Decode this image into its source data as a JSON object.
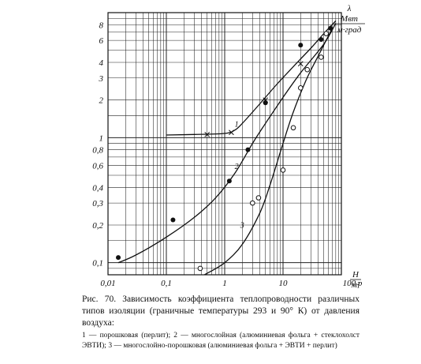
{
  "chart_data": {
    "type": "scatter",
    "x_scale": "log",
    "y_scale": "log",
    "xlim": [
      0.01,
      100
    ],
    "ylim": [
      0.08,
      10
    ],
    "grid": true,
    "y_unit_symbol": "λ",
    "y_unit_num": "Мвт",
    "y_unit_den": "м·град",
    "x_unit_num": "Н",
    "x_unit_den": "м²",
    "x_ticks": [
      {
        "v": 0.01,
        "label": "0,01"
      },
      {
        "v": 0.1,
        "label": "0,1"
      },
      {
        "v": 1,
        "label": "1"
      },
      {
        "v": 10,
        "label": "10"
      },
      {
        "v": 100,
        "label": "100 р"
      }
    ],
    "y_ticks": [
      {
        "v": 0.1,
        "label": "0,1"
      },
      {
        "v": 0.2,
        "label": "0,2"
      },
      {
        "v": 0.3,
        "label": "0,3"
      },
      {
        "v": 0.4,
        "label": "0,4"
      },
      {
        "v": 0.6,
        "label": "0,6"
      },
      {
        "v": 0.8,
        "label": "0,8"
      },
      {
        "v": 1,
        "label": "1"
      },
      {
        "v": 2,
        "label": "2"
      },
      {
        "v": 3,
        "label": "3"
      },
      {
        "v": 4,
        "label": "4"
      },
      {
        "v": 6,
        "label": "6"
      },
      {
        "v": 8,
        "label": "8"
      }
    ],
    "series": [
      {
        "name": "1",
        "marker": "x",
        "curve": [
          [
            0.1,
            1.05
          ],
          [
            0.3,
            1.06
          ],
          [
            1,
            1.08
          ],
          [
            1.5,
            1.15
          ],
          [
            2,
            1.3
          ],
          [
            3,
            1.6
          ],
          [
            5,
            2.1
          ],
          [
            8,
            2.7
          ],
          [
            15,
            3.7
          ],
          [
            30,
            5.2
          ],
          [
            50,
            6.8
          ],
          [
            80,
            8.6
          ]
        ],
        "points": [
          [
            0.5,
            1.06
          ],
          [
            1.3,
            1.1
          ],
          [
            5,
            2.0
          ],
          [
            20,
            3.9
          ]
        ],
        "label_at": [
          1.6,
          1.22
        ]
      },
      {
        "name": "2",
        "marker": "filled-circle",
        "curve": [
          [
            0.015,
            0.1
          ],
          [
            0.03,
            0.115
          ],
          [
            0.1,
            0.16
          ],
          [
            0.3,
            0.23
          ],
          [
            0.7,
            0.33
          ],
          [
            1.5,
            0.52
          ],
          [
            3,
            0.9
          ],
          [
            5,
            1.3
          ],
          [
            10,
            2.1
          ],
          [
            20,
            3.3
          ],
          [
            50,
            5.6
          ],
          [
            80,
            8.2
          ]
        ],
        "points": [
          [
            0.015,
            0.11
          ],
          [
            0.13,
            0.22
          ],
          [
            1.2,
            0.45
          ],
          [
            2.5,
            0.8
          ],
          [
            5,
            1.9
          ],
          [
            20,
            5.5
          ],
          [
            45,
            6.1
          ],
          [
            65,
            7.5
          ]
        ],
        "label_at": [
          1.6,
          0.56
        ]
      },
      {
        "name": "3",
        "marker": "open-circle",
        "curve": [
          [
            0.45,
            0.08
          ],
          [
            1,
            0.1
          ],
          [
            2,
            0.14
          ],
          [
            4,
            0.25
          ],
          [
            6,
            0.42
          ],
          [
            10,
            0.9
          ],
          [
            15,
            1.6
          ],
          [
            25,
            2.9
          ],
          [
            40,
            4.5
          ],
          [
            70,
            7.5
          ]
        ],
        "points": [
          [
            0.38,
            0.09
          ],
          [
            3,
            0.3
          ],
          [
            3.8,
            0.33
          ],
          [
            10,
            0.55
          ],
          [
            15,
            1.2
          ],
          [
            20,
            2.5
          ],
          [
            26,
            3.5
          ],
          [
            45,
            4.4
          ],
          [
            55,
            6.8
          ]
        ],
        "label_at": [
          2.0,
          0.19
        ]
      }
    ]
  },
  "caption": {
    "main": "Рис. 70. Зависимость коэффициента теплопроводности различных типов изоляции (граничные температуры 293 и 90° К) от давления воздуха:",
    "legend": "1 — порошковая (перлит); 2 — многослойная (алюминиевая фольга + стеклохолст ЭВТИ); 3 — многослойно-порошковая (алюминиевая фольга + ЭВТИ + перлит)"
  }
}
